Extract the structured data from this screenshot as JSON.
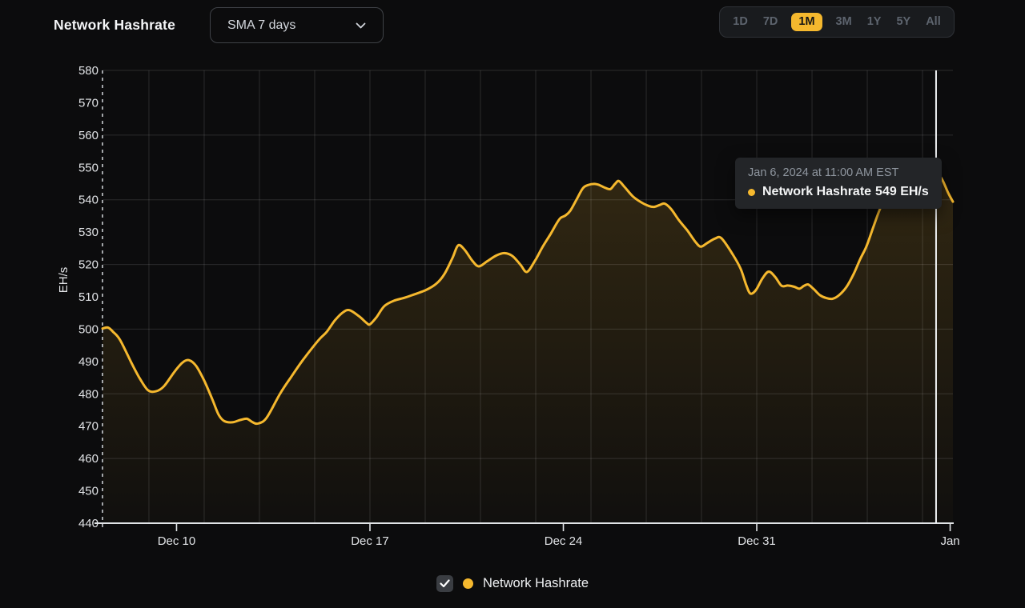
{
  "header": {
    "title": "Network Hashrate",
    "sma_dropdown": {
      "value": "SMA 7 days",
      "icon": "chevron-down"
    },
    "time_ranges": {
      "options": [
        "1D",
        "7D",
        "1M",
        "3M",
        "1Y",
        "5Y",
        "All"
      ],
      "active": "1M"
    }
  },
  "tooltip": {
    "timestamp": "Jan 6, 2024 at 11:00 AM EST",
    "series": "Network Hashrate",
    "value": "549 EH/s",
    "dot_icon": "series-dot"
  },
  "legend": {
    "checked": true,
    "checkbox_icon": "check",
    "dot_icon": "series-dot",
    "label": "Network Hashrate"
  },
  "chart_data": {
    "type": "area",
    "title": "Network Hashrate",
    "ylabel": "EH/s",
    "ylim": [
      440,
      580
    ],
    "y_ticks": [
      580,
      570,
      560,
      550,
      540,
      530,
      520,
      510,
      500,
      490,
      480,
      470,
      460,
      450,
      440
    ],
    "y_grid_step": 20,
    "x_unit": "days relative to Dec 31, 2023",
    "xlim": [
      -23.68,
      7.1
    ],
    "x_ticks": [
      {
        "label": "Dec 10",
        "t": -21
      },
      {
        "label": "Dec 17",
        "t": -14
      },
      {
        "label": "Dec 24",
        "t": -7
      },
      {
        "label": "Dec 31",
        "t": 0
      },
      {
        "label": "Jan",
        "t": 7
      }
    ],
    "x_grid_start": -22,
    "x_grid_step": 2,
    "grid": true,
    "legend_position": "bottom",
    "cursor_t": 6.49,
    "series": [
      {
        "name": "Network Hashrate",
        "unit": "EH/s",
        "points": [
          [
            -23.68,
            500.2
          ],
          [
            -23.48,
            500.5
          ],
          [
            -23.3,
            499.2
          ],
          [
            -23.04,
            496.6
          ],
          [
            -22.61,
            489.2
          ],
          [
            -22.32,
            484.6
          ],
          [
            -22.03,
            481.1
          ],
          [
            -21.74,
            480.8
          ],
          [
            -21.45,
            482.4
          ],
          [
            -21.07,
            486.9
          ],
          [
            -20.78,
            489.7
          ],
          [
            -20.55,
            490.4
          ],
          [
            -20.29,
            488.6
          ],
          [
            -20.0,
            484.1
          ],
          [
            -19.71,
            478.4
          ],
          [
            -19.48,
            473.6
          ],
          [
            -19.28,
            471.6
          ],
          [
            -18.99,
            471.2
          ],
          [
            -18.7,
            471.9
          ],
          [
            -18.46,
            472.3
          ],
          [
            -18.26,
            471.3
          ],
          [
            -18.06,
            470.8
          ],
          [
            -17.74,
            472.6
          ],
          [
            -17.25,
            480.1
          ],
          [
            -16.87,
            485.0
          ],
          [
            -16.43,
            490.4
          ],
          [
            -15.86,
            496.6
          ],
          [
            -15.57,
            499.1
          ],
          [
            -15.28,
            502.6
          ],
          [
            -14.99,
            505.1
          ],
          [
            -14.75,
            505.9
          ],
          [
            -14.41,
            504.1
          ],
          [
            -14.12,
            501.9
          ],
          [
            -14.0,
            501.5
          ],
          [
            -13.77,
            503.6
          ],
          [
            -13.48,
            507.1
          ],
          [
            -13.13,
            508.8
          ],
          [
            -12.75,
            509.7
          ],
          [
            -12.38,
            510.8
          ],
          [
            -11.97,
            512.1
          ],
          [
            -11.59,
            514.1
          ],
          [
            -11.3,
            517.1
          ],
          [
            -11.01,
            522.1
          ],
          [
            -10.81,
            525.9
          ],
          [
            -10.58,
            524.6
          ],
          [
            -10.29,
            521.1
          ],
          [
            -10.06,
            519.4
          ],
          [
            -9.77,
            520.9
          ],
          [
            -9.42,
            522.8
          ],
          [
            -9.13,
            523.5
          ],
          [
            -8.84,
            522.6
          ],
          [
            -8.55,
            519.9
          ],
          [
            -8.32,
            517.7
          ],
          [
            -8.03,
            521.1
          ],
          [
            -7.74,
            525.6
          ],
          [
            -7.45,
            529.6
          ],
          [
            -7.25,
            532.6
          ],
          [
            -7.1,
            534.4
          ],
          [
            -6.93,
            535.1
          ],
          [
            -6.75,
            536.6
          ],
          [
            -6.52,
            540.1
          ],
          [
            -6.29,
            543.6
          ],
          [
            -6.09,
            544.6
          ],
          [
            -5.88,
            544.9
          ],
          [
            -5.71,
            544.6
          ],
          [
            -5.51,
            543.8
          ],
          [
            -5.3,
            543.3
          ],
          [
            -5.13,
            544.9
          ],
          [
            -4.99,
            545.8
          ],
          [
            -4.78,
            543.9
          ],
          [
            -4.49,
            541.1
          ],
          [
            -4.2,
            539.3
          ],
          [
            -3.91,
            538.1
          ],
          [
            -3.71,
            537.8
          ],
          [
            -3.51,
            538.4
          ],
          [
            -3.33,
            538.8
          ],
          [
            -3.1,
            537.1
          ],
          [
            -2.81,
            533.6
          ],
          [
            -2.52,
            530.6
          ],
          [
            -2.23,
            527.1
          ],
          [
            -2.03,
            525.5
          ],
          [
            -1.8,
            526.6
          ],
          [
            -1.51,
            528.0
          ],
          [
            -1.28,
            528.1
          ],
          [
            -0.87,
            523.1
          ],
          [
            -0.58,
            518.6
          ],
          [
            -0.38,
            513.6
          ],
          [
            -0.23,
            511.0
          ],
          [
            -0.03,
            512.1
          ],
          [
            0.2,
            515.6
          ],
          [
            0.43,
            517.8
          ],
          [
            0.67,
            516.1
          ],
          [
            0.9,
            513.4
          ],
          [
            1.13,
            513.5
          ],
          [
            1.36,
            513.1
          ],
          [
            1.54,
            512.5
          ],
          [
            1.71,
            513.4
          ],
          [
            1.86,
            513.8
          ],
          [
            2.06,
            512.4
          ],
          [
            2.29,
            510.5
          ],
          [
            2.52,
            509.6
          ],
          [
            2.75,
            509.4
          ],
          [
            2.99,
            510.6
          ],
          [
            3.25,
            513.1
          ],
          [
            3.51,
            517.1
          ],
          [
            3.74,
            521.6
          ],
          [
            3.97,
            525.6
          ],
          [
            4.2,
            531.1
          ],
          [
            4.41,
            536.1
          ],
          [
            4.64,
            540.6
          ],
          [
            4.93,
            545.1
          ],
          [
            5.22,
            548.1
          ],
          [
            5.51,
            550.1
          ],
          [
            5.8,
            551.1
          ],
          [
            6.09,
            550.9
          ],
          [
            6.38,
            549.9
          ],
          [
            6.49,
            549.0
          ],
          [
            6.72,
            546.1
          ],
          [
            6.93,
            542.1
          ],
          [
            7.1,
            539.4
          ]
        ]
      }
    ]
  },
  "colors": {
    "accent": "#f5b82e",
    "background": "#0c0c0d",
    "panel": "#191b1e",
    "grid": "rgba(255,255,255,0.13)",
    "axis": "#e1e4e7",
    "dashed_axis": "#c9ccd0",
    "cursor": "#f0f2f4",
    "tick_text": "#e2e4e7",
    "tooltip_bg": "#232528",
    "text_muted": "#8f969f",
    "inactive_range_text": "#5d646e",
    "active_range_text": "#141414"
  }
}
